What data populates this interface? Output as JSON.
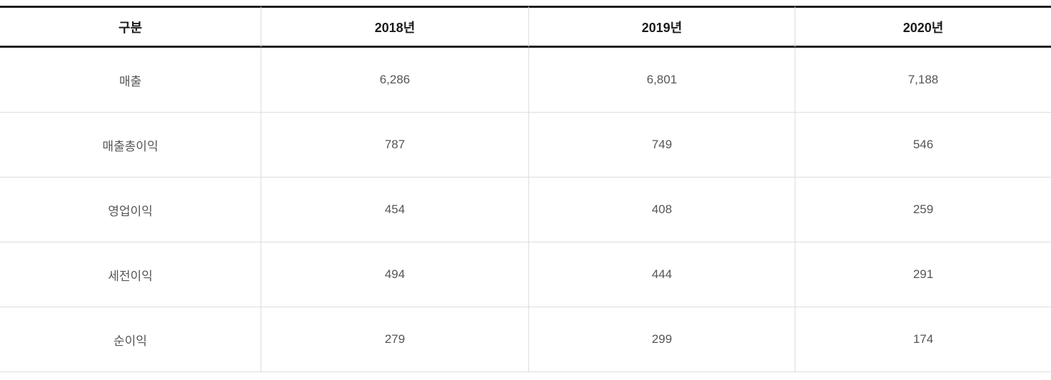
{
  "table": {
    "columns": [
      "구분",
      "2018년",
      "2019년",
      "2020년"
    ],
    "rows": [
      {
        "label": "매출",
        "values": [
          "6,286",
          "6,801",
          "7,188"
        ]
      },
      {
        "label": "매출총이익",
        "values": [
          "787",
          "749",
          "546"
        ]
      },
      {
        "label": "영업이익",
        "values": [
          "454",
          "408",
          "259"
        ]
      },
      {
        "label": "세전이익",
        "values": [
          "494",
          "444",
          "291"
        ]
      },
      {
        "label": "순이익",
        "values": [
          "279",
          "299",
          "174"
        ]
      }
    ],
    "colors": {
      "header_text": "#1b1b1b",
      "body_text": "#555555",
      "heavy_border": "#1f1f1f",
      "light_border": "#dddddd",
      "background": "#ffffff"
    }
  }
}
